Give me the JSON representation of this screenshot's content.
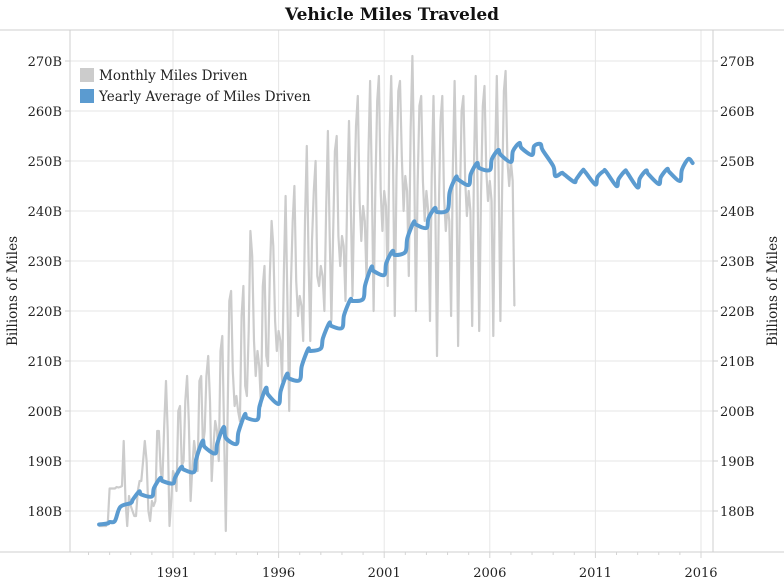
{
  "chart_data": {
    "type": "line",
    "title": "Vehicle Miles Traveled",
    "xlabel": "",
    "ylabel": "Billions of Miles",
    "ylabel_right": "Billions of Miles",
    "ylim": [
      174,
      277
    ],
    "xlim": [
      1986.1,
      2017.0
    ],
    "grid": true,
    "legend_position": "top-left",
    "y_ticks": [
      180,
      190,
      200,
      210,
      220,
      230,
      240,
      250,
      260,
      270
    ],
    "y_tick_labels": [
      "180B",
      "190B",
      "200B",
      "210B",
      "220B",
      "230B",
      "240B",
      "250B",
      "260B",
      "270B"
    ],
    "x_ticks": [
      1991,
      1996,
      2001,
      2006,
      2011,
      2016
    ],
    "x_tick_labels": [
      "1991",
      "1996",
      "2001",
      "2006",
      "2011",
      "2016"
    ],
    "colors": {
      "monthly": "#cccccc",
      "yearly": "#5b9bd0"
    },
    "series": [
      {
        "name": "Monthly Miles Driven",
        "start_year": 1987.5,
        "step_months": 1,
        "values": [
          177,
          177,
          177,
          177,
          177,
          178,
          184.5,
          184.5,
          184.5,
          184.5,
          184.8,
          184.7,
          184.8,
          185,
          194,
          182,
          177,
          183,
          181,
          180,
          179,
          179,
          184,
          186,
          186,
          190,
          194,
          190,
          180,
          178,
          182,
          181,
          182,
          196,
          196,
          188,
          186,
          197,
          206,
          196,
          177,
          182,
          188,
          187,
          184,
          200,
          201,
          189,
          190,
          202,
          207,
          198,
          182,
          189,
          194,
          191,
          188,
          206,
          207,
          193,
          196,
          207,
          211,
          202,
          186,
          193,
          198,
          196,
          190,
          212,
          215,
          197,
          176,
          199,
          222,
          224,
          208,
          201,
          203,
          200,
          198,
          219,
          225,
          205,
          203,
          216,
          236,
          231,
          214,
          207,
          212,
          209,
          201,
          225,
          229,
          211,
          209,
          227,
          238,
          233,
          218,
          212,
          216,
          214,
          206,
          228,
          243,
          222,
          200,
          225,
          238,
          245,
          226,
          219,
          223,
          221,
          214,
          238,
          253,
          231,
          214,
          234,
          244,
          250,
          227,
          225,
          229,
          227,
          220,
          240,
          256,
          236,
          218,
          236,
          252,
          255,
          235,
          229,
          235,
          233,
          222,
          243,
          258,
          241,
          223,
          243,
          257,
          263,
          242,
          234,
          241,
          238,
          226,
          251,
          266,
          245,
          220,
          245,
          262,
          267,
          244,
          236,
          244,
          241,
          225,
          255,
          267,
          250,
          219,
          247,
          264,
          266,
          251,
          240,
          247,
          244,
          227,
          256,
          271,
          251,
          220,
          245,
          261,
          263,
          246,
          238,
          244,
          240,
          218,
          247,
          263,
          243,
          211,
          240,
          258,
          263,
          243,
          236,
          241,
          238,
          219,
          248,
          266,
          246,
          213,
          242,
          260,
          263,
          246,
          239,
          244,
          240,
          217,
          249,
          267,
          246,
          216,
          243,
          261,
          265,
          248,
          242,
          246,
          242,
          215,
          250,
          267,
          248,
          218,
          244,
          264,
          268,
          250,
          245,
          250,
          246,
          221
        ]
      },
      {
        "name": "Yearly Average of Miles Driven",
        "x": [
          1987.5,
          1987.9,
          1988.0,
          1988.25,
          1988.5,
          1989.0,
          1989.1,
          1989.4,
          1989.5,
          1990.0,
          1990.1,
          1990.4,
          1990.5,
          1991.0,
          1991.1,
          1991.4,
          1991.5,
          1992.0,
          1992.1,
          1992.4,
          1992.5,
          1993.0,
          1993.1,
          1993.4,
          1993.5,
          1994.0,
          1994.1,
          1994.4,
          1994.5,
          1995.0,
          1995.1,
          1995.4,
          1995.5,
          1996.0,
          1996.1,
          1996.4,
          1996.5,
          1997.0,
          1997.1,
          1997.4,
          1997.5,
          1998.0,
          1998.1,
          1998.4,
          1998.5,
          1999.0,
          1999.1,
          1999.4,
          1999.5,
          2000.0,
          2000.1,
          2000.4,
          2000.5,
          2001.0,
          2001.1,
          2001.4,
          2001.5,
          2002.0,
          2002.1,
          2002.4,
          2002.5,
          2003.0,
          2003.1,
          2003.4,
          2003.5,
          2004.0,
          2004.1,
          2004.4,
          2004.5,
          2005.0,
          2005.1,
          2005.4,
          2005.5,
          2006.0,
          2006.1,
          2006.4,
          2006.5,
          2007.0,
          2007.1,
          2007.4,
          2007.5,
          2008.0,
          2008.1,
          2008.4,
          2008.5,
          2009.0,
          2009.1,
          2009.4,
          2009.5,
          2010.0,
          2010.1,
          2010.4,
          2010.5,
          2011.0,
          2011.1,
          2011.4,
          2011.5,
          2012.0,
          2012.1,
          2012.4,
          2012.5,
          2013.0,
          2013.1,
          2013.4,
          2013.5,
          2014.0,
          2014.1,
          2014.4,
          2014.5,
          2015.0,
          2015.1,
          2015.4,
          2015.6
        ],
        "values": [
          177.3,
          177.5,
          177.8,
          178.0,
          180.8,
          181.6,
          182.3,
          183.9,
          183.3,
          182.9,
          184.6,
          186.6,
          186.0,
          185.5,
          186.7,
          188.8,
          188.3,
          187.8,
          190.4,
          194.0,
          192.8,
          191.5,
          193.6,
          196.8,
          194.6,
          193.4,
          195.8,
          199.3,
          198.6,
          198.3,
          201.0,
          204.6,
          203.3,
          201.4,
          204.0,
          207.4,
          206.5,
          206.2,
          209.0,
          212.4,
          212.0,
          212.5,
          214.6,
          217.6,
          217.0,
          216.6,
          219.2,
          222.3,
          222.0,
          222.4,
          225.2,
          228.8,
          228.0,
          227.2,
          229.6,
          232.0,
          231.2,
          231.8,
          234.6,
          237.8,
          237.3,
          236.6,
          238.6,
          240.6,
          239.8,
          240.2,
          243.8,
          246.8,
          246.3,
          245.2,
          247.4,
          249.6,
          248.6,
          248.2,
          250.4,
          252.2,
          251.3,
          249.8,
          252.0,
          253.6,
          252.6,
          251.2,
          253.0,
          253.4,
          252.2,
          249.0,
          247.0,
          247.6,
          247.4,
          245.8,
          246.4,
          248.1,
          247.9,
          245.3,
          246.8,
          248.0,
          247.9,
          245.0,
          246.4,
          248.0,
          247.7,
          244.7,
          246.5,
          248.1,
          247.4,
          245.4,
          246.8,
          248.4,
          247.8,
          246.0,
          248.3,
          250.4,
          249.6
        ]
      }
    ]
  }
}
